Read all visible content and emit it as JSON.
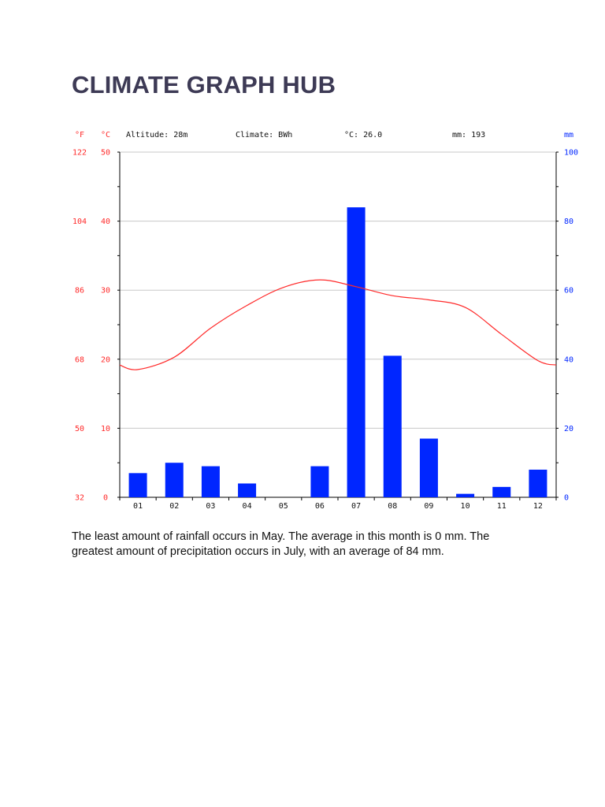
{
  "page": {
    "title": "CLIMATE GRAPH HUB"
  },
  "chart_data": {
    "type": "bar",
    "header": {
      "altitude": "Altitude: 28m",
      "climate": "Climate: BWh",
      "temperature": "°C: 26.0",
      "precipitation": "mm: 193"
    },
    "units": {
      "fahrenheit": "°F",
      "celsius": "°C",
      "precipitation": "mm"
    },
    "categories": [
      "01",
      "02",
      "03",
      "04",
      "05",
      "06",
      "07",
      "08",
      "09",
      "10",
      "11",
      "12"
    ],
    "series": [
      {
        "type": "bar",
        "axis": "right",
        "color": "#0026ff",
        "values": [
          7,
          10,
          9,
          4,
          0,
          9,
          84,
          41,
          17,
          1,
          3,
          8
        ]
      },
      {
        "type": "line",
        "axis": "left",
        "color": "#ff2a2a",
        "values": [
          18.5,
          20.3,
          24.5,
          27.8,
          30.4,
          31.5,
          30.5,
          29.2,
          28.6,
          27.5,
          23.6,
          19.8
        ]
      }
    ],
    "y_left_celsius": {
      "range": [
        0,
        50
      ],
      "ticks": [
        0,
        10,
        20,
        30,
        40,
        50
      ]
    },
    "y_left_fahrenheit": {
      "ticks": [
        32,
        50,
        68,
        86,
        104,
        122
      ]
    },
    "y_right_mm": {
      "range": [
        0,
        100
      ],
      "ticks": [
        0,
        20,
        40,
        60,
        80,
        100
      ]
    },
    "grid": true,
    "colors": {
      "temperature_axis": "#ff2a2a",
      "precipitation_axis": "#0026ff",
      "grid": "#c8c8c8"
    }
  },
  "caption": "The least amount of rainfall occurs in May. The average in this month is 0 mm. The greatest amount of precipitation occurs in July, with an average of 84 mm."
}
